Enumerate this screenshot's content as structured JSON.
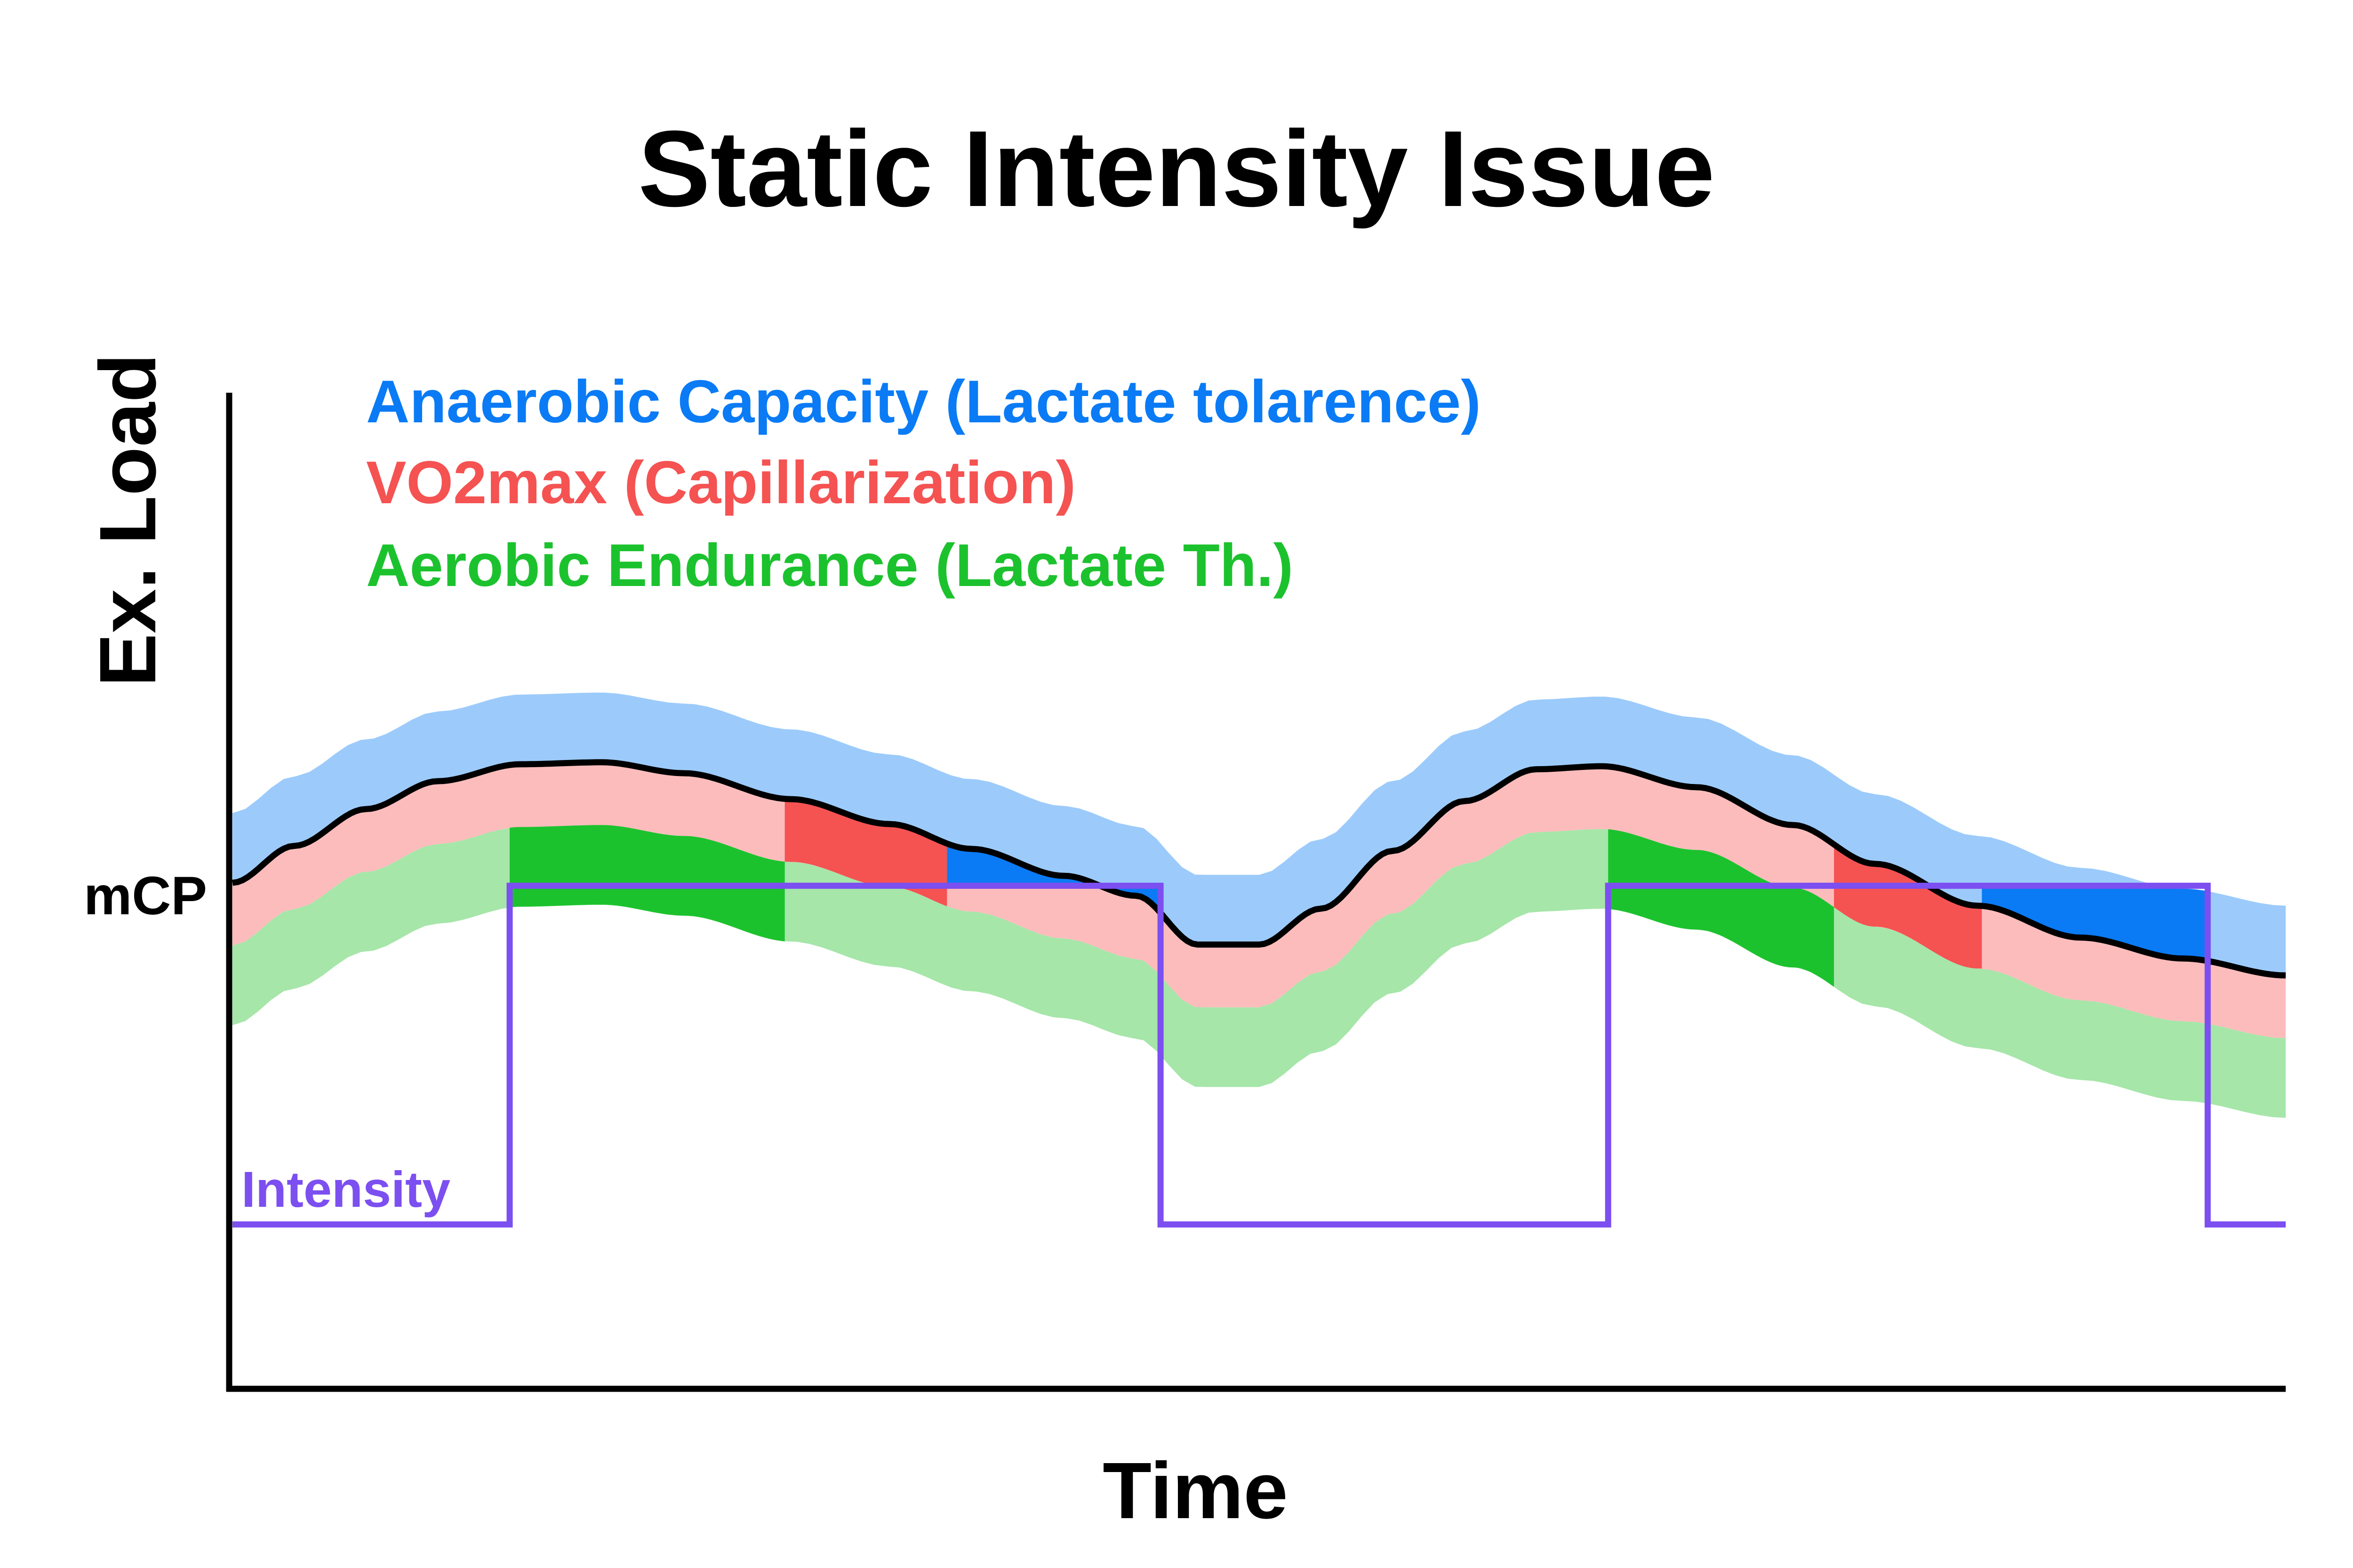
{
  "chart_data": {
    "type": "area",
    "title": "Static Intensity Issue",
    "xlabel": "Time",
    "ylabel": "Ex. Load",
    "y_tick_label": "mCP",
    "legend": [
      {
        "label": "Anaerobic Capacity (Lactate tolarence)",
        "color": "#0a7bf5"
      },
      {
        "label": "VO2max (Capillarization)",
        "color": "#f55252"
      },
      {
        "label": "Aerobic Endurance (Lactate Th.)",
        "color": "#1cc22e"
      }
    ],
    "intensity_label": "Intensity",
    "colors": {
      "load_line": "#000000",
      "intensity": "#7c4ff0",
      "anaerobic_band": "#9ccbfb",
      "anaerobic_highlight": "#0a7bf5",
      "vo2max_band": "#fdbcbc",
      "vo2max_highlight": "#f55252",
      "aerobic_band": "#a6e6a9",
      "aerobic_highlight": "#1cc22e"
    },
    "x_range": [
      0,
      100
    ],
    "y_range": [
      0,
      100
    ],
    "mcp_level": 50.5,
    "band_widths": {
      "anaerobic": 7,
      "vo2max": 6.3,
      "aerobic": 8
    },
    "load_curve": {
      "x": [
        0,
        3,
        6.5,
        10,
        14,
        18,
        22,
        27.2,
        32,
        36,
        40.5,
        44,
        47,
        50,
        53,
        56.5,
        60,
        63.5,
        66.7,
        71.3,
        76,
        80,
        85,
        90,
        95,
        100
      ],
      "y": [
        50.8,
        54.5,
        58.2,
        61,
        62.7,
        62.9,
        61.8,
        59.2,
        56.7,
        54.2,
        51.5,
        49.5,
        44.6,
        44.6,
        48.2,
        54,
        59,
        62.2,
        62.5,
        60.4,
        56.6,
        52.7,
        48.5,
        45.3,
        43.2,
        41.5
      ]
    },
    "intensity": {
      "x": [
        0,
        13.5,
        13.5,
        45.2,
        45.2,
        67.0,
        67.0,
        96.2,
        96.2,
        100
      ],
      "y": [
        16.5,
        16.5,
        50.5,
        50.5,
        16.5,
        16.5,
        50.5,
        50.5,
        16.5,
        16.5
      ]
    },
    "highlight_intervals": [
      {
        "zone": "aerobic",
        "x": [
          13.5,
          26.9
        ]
      },
      {
        "zone": "vo2max",
        "x": [
          26.9,
          34.8
        ]
      },
      {
        "zone": "anaerobic",
        "x": [
          34.8,
          45.2
        ]
      },
      {
        "zone": "aerobic",
        "x": [
          67.0,
          78.0
        ]
      },
      {
        "zone": "vo2max",
        "x": [
          78.0,
          85.2
        ]
      },
      {
        "zone": "anaerobic",
        "x": [
          85.2,
          96.2
        ]
      }
    ]
  }
}
